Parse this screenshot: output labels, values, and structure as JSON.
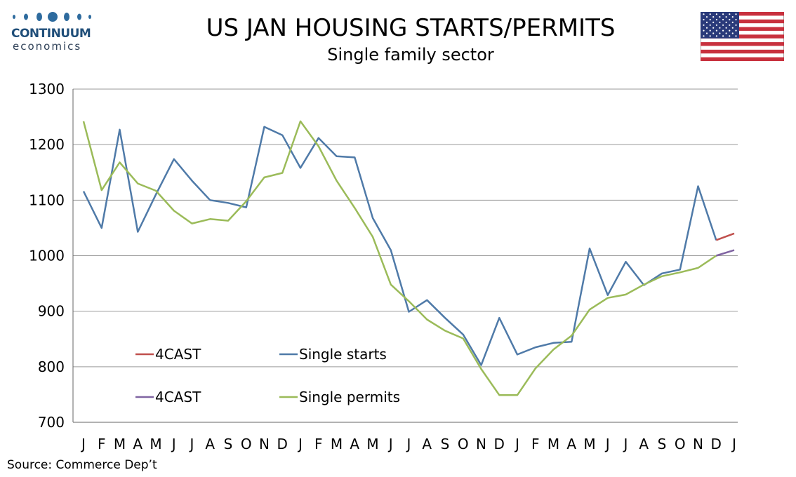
{
  "brand": {
    "name": "CONTINUUM",
    "tagline": "economics",
    "dot_color": "#2e6b9e"
  },
  "header": {
    "title": "US JAN HOUSING STARTS/PERMITS",
    "subtitle": "Single family sector",
    "flag_icon": "us-flag-icon"
  },
  "footer": {
    "source": "Source: Commerce Dep’t"
  },
  "chart_data": {
    "type": "line",
    "title": "US JAN HOUSING STARTS/PERMITS",
    "subtitle": "Single family sector",
    "xlabel": "",
    "ylabel": "",
    "ylim": [
      700,
      1300
    ],
    "yticks": [
      700,
      800,
      900,
      1000,
      1100,
      1200,
      1300
    ],
    "grid": true,
    "categories": [
      "J",
      "F",
      "M",
      "A",
      "M",
      "J",
      "J",
      "A",
      "S",
      "O",
      "N",
      "D",
      "J",
      "F",
      "M",
      "A",
      "M",
      "J",
      "J",
      "A",
      "S",
      "O",
      "N",
      "D",
      "J",
      "F",
      "M",
      "A",
      "M",
      "J",
      "J",
      "A",
      "S",
      "O",
      "N",
      "D",
      "J"
    ],
    "series": [
      {
        "name": "Single starts",
        "color": "#4f7aa8",
        "values": [
          1116,
          1050,
          1227,
          1043,
          1110,
          1174,
          1135,
          1100,
          1095,
          1087,
          1232,
          1217,
          1158,
          1212,
          1179,
          1177,
          1068,
          1010,
          899,
          920,
          888,
          858,
          803,
          888,
          822,
          835,
          843,
          845,
          1013,
          929,
          989,
          947,
          968,
          975,
          1125,
          1028,
          null
        ]
      },
      {
        "name": "4CAST",
        "color": "#c0504d",
        "values": [
          null,
          null,
          null,
          null,
          null,
          null,
          null,
          null,
          null,
          null,
          null,
          null,
          null,
          null,
          null,
          null,
          null,
          null,
          null,
          null,
          null,
          null,
          null,
          null,
          null,
          null,
          null,
          null,
          null,
          null,
          null,
          null,
          null,
          null,
          null,
          1028,
          1040
        ]
      },
      {
        "name": "Single permits",
        "color": "#9bbb59",
        "values": [
          1242,
          1118,
          1168,
          1130,
          1117,
          1081,
          1058,
          1066,
          1063,
          1098,
          1141,
          1149,
          1242,
          1197,
          1135,
          1086,
          1034,
          948,
          918,
          885,
          865,
          851,
          796,
          749,
          749,
          797,
          831,
          856,
          903,
          924,
          930,
          948,
          963,
          970,
          978,
          1000,
          null
        ]
      },
      {
        "name": "4CAST",
        "color": "#8064a2",
        "values": [
          null,
          null,
          null,
          null,
          null,
          null,
          null,
          null,
          null,
          null,
          null,
          null,
          null,
          null,
          null,
          null,
          null,
          null,
          null,
          null,
          null,
          null,
          null,
          null,
          null,
          null,
          null,
          null,
          null,
          null,
          null,
          null,
          null,
          null,
          null,
          1000,
          1010
        ]
      }
    ],
    "legend": [
      {
        "label": "4CAST",
        "color": "#c0504d"
      },
      {
        "label": "Single starts",
        "color": "#4f7aa8"
      },
      {
        "label": "4CAST",
        "color": "#8064a2"
      },
      {
        "label": "Single permits",
        "color": "#9bbb59"
      }
    ],
    "legend_placement": "bottom-left"
  }
}
